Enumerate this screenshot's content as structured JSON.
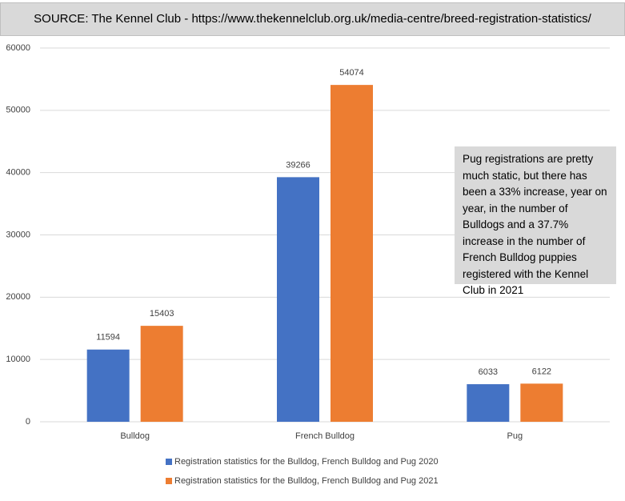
{
  "chart_data": {
    "type": "bar",
    "title": "SOURCE: The Kennel Club - https://www.thekennelclub.org.uk/media-centre/breed-registration-statistics/",
    "annotation": "Pug registrations are pretty much static, but there has been a 33% increase, year on year, in the number of Bulldogs and a 37.7% increase in the number of French Bulldog puppies registered with the Kennel Club in 2021",
    "categories": [
      "Bulldog",
      "French Bulldog",
      "Pug"
    ],
    "series": [
      {
        "name": "Registration statistics for the Bulldog, French Bulldog and Pug 2020",
        "color": "#4472c4",
        "values": [
          11594,
          39266,
          6033
        ]
      },
      {
        "name": "Registration statistics for the Bulldog, French Bulldog and Pug 2021",
        "color": "#ed7d31",
        "values": [
          15403,
          54074,
          6122
        ]
      }
    ],
    "ylim": [
      0,
      60000
    ],
    "yticks": [
      0,
      10000,
      20000,
      30000,
      40000,
      50000,
      60000
    ],
    "grid": true
  }
}
